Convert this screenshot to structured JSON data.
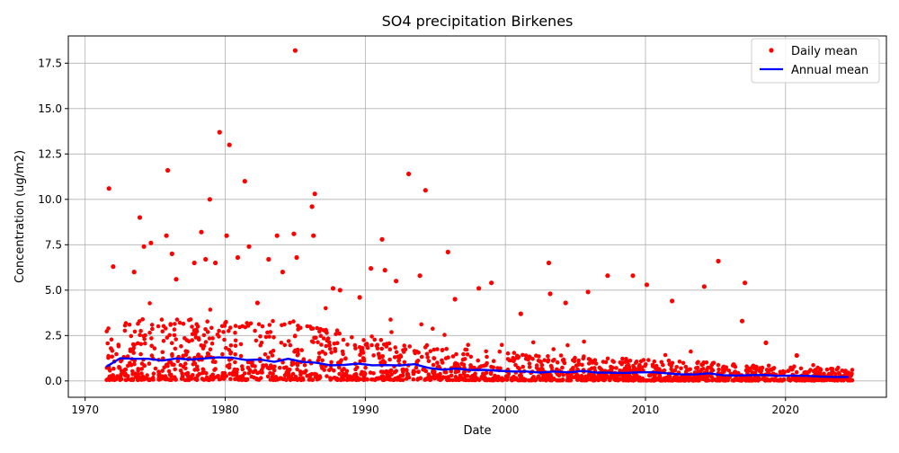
{
  "chart_data": {
    "type": "scatter",
    "title": "SO4 precipitation Birkenes",
    "xlabel": "Date",
    "ylabel": "Concentration (ug/m2)",
    "xlim": [
      1968.8,
      2027.2
    ],
    "ylim": [
      -0.9,
      19.0
    ],
    "grid": true,
    "legend_position": "top-right",
    "x_ticks": [
      {
        "value": 1970,
        "label": "1970"
      },
      {
        "value": 1980,
        "label": "1980"
      },
      {
        "value": 1990,
        "label": "1990"
      },
      {
        "value": 2000,
        "label": "2000"
      },
      {
        "value": 2010,
        "label": "2010"
      },
      {
        "value": 2020,
        "label": "2020"
      }
    ],
    "y_ticks": [
      {
        "value": 0.0,
        "label": "0.0"
      },
      {
        "value": 2.5,
        "label": "2.5"
      },
      {
        "value": 5.0,
        "label": "5.0"
      },
      {
        "value": 7.5,
        "label": "7.5"
      },
      {
        "value": 10.0,
        "label": "10.0"
      },
      {
        "value": 12.5,
        "label": "12.5"
      },
      {
        "value": 15.0,
        "label": "15.0"
      },
      {
        "value": 17.5,
        "label": "17.5"
      }
    ],
    "series": [
      {
        "name": "Daily mean",
        "kind": "points",
        "color": "#ff0000",
        "points": [
          [
            1971.7,
            10.6
          ],
          [
            1972.0,
            6.3
          ],
          [
            1973.5,
            6.0
          ],
          [
            1973.9,
            9.0
          ],
          [
            1974.2,
            7.4
          ],
          [
            1974.7,
            7.6
          ],
          [
            1975.9,
            11.6
          ],
          [
            1975.8,
            8.0
          ],
          [
            1976.2,
            7.0
          ],
          [
            1976.5,
            5.6
          ],
          [
            1977.8,
            6.5
          ],
          [
            1978.3,
            8.2
          ],
          [
            1978.6,
            6.7
          ],
          [
            1978.9,
            10.0
          ],
          [
            1979.3,
            6.5
          ],
          [
            1979.6,
            13.7
          ],
          [
            1980.1,
            8.0
          ],
          [
            1980.3,
            13.0
          ],
          [
            1980.9,
            6.8
          ],
          [
            1981.4,
            11.0
          ],
          [
            1981.7,
            7.4
          ],
          [
            1982.3,
            4.3
          ],
          [
            1983.1,
            6.7
          ],
          [
            1983.7,
            8.0
          ],
          [
            1984.1,
            6.0
          ],
          [
            1984.9,
            8.1
          ],
          [
            1985.0,
            18.2
          ],
          [
            1985.1,
            6.8
          ],
          [
            1986.2,
            9.6
          ],
          [
            1986.4,
            10.3
          ],
          [
            1986.3,
            8.0
          ],
          [
            1987.7,
            5.1
          ],
          [
            1988.2,
            5.0
          ],
          [
            1989.6,
            4.6
          ],
          [
            1990.4,
            6.2
          ],
          [
            1991.2,
            7.8
          ],
          [
            1991.4,
            6.1
          ],
          [
            1992.2,
            5.5
          ],
          [
            1993.1,
            11.4
          ],
          [
            1993.9,
            5.8
          ],
          [
            1994.3,
            10.5
          ],
          [
            1995.9,
            7.1
          ],
          [
            1996.4,
            4.5
          ],
          [
            1998.1,
            5.1
          ],
          [
            1999.0,
            5.4
          ],
          [
            2001.1,
            3.7
          ],
          [
            2003.1,
            6.5
          ],
          [
            2003.2,
            4.8
          ],
          [
            2004.3,
            4.3
          ],
          [
            2005.9,
            4.9
          ],
          [
            2007.3,
            5.8
          ],
          [
            2009.1,
            5.8
          ],
          [
            2010.1,
            5.3
          ],
          [
            2011.9,
            4.4
          ],
          [
            2014.2,
            5.2
          ],
          [
            2015.2,
            6.6
          ],
          [
            2016.9,
            3.3
          ],
          [
            2017.1,
            5.4
          ],
          [
            2018.6,
            2.1
          ],
          [
            2020.8,
            1.4
          ]
        ],
        "bulk_band": [
          [
            1971.5,
            0.05,
            3.2
          ],
          [
            1975,
            0.05,
            3.6
          ],
          [
            1980,
            0.05,
            3.5
          ],
          [
            1985,
            0.05,
            3.3
          ],
          [
            1990,
            0.05,
            2.6
          ],
          [
            1995,
            0.05,
            1.9
          ],
          [
            2000,
            0.03,
            1.6
          ],
          [
            2005,
            0.03,
            1.4
          ],
          [
            2010,
            0.02,
            1.2
          ],
          [
            2015,
            0.02,
            1.0
          ],
          [
            2020,
            0.02,
            0.8
          ],
          [
            2024.8,
            0.02,
            0.7
          ]
        ]
      },
      {
        "name": "Annual mean",
        "kind": "line",
        "color": "#0000ff",
        "x": [
          1971.5,
          1972.5,
          1973.5,
          1974.5,
          1975.5,
          1976.5,
          1977.5,
          1978.5,
          1979.5,
          1980.5,
          1981.5,
          1982.5,
          1983.5,
          1984.5,
          1985.5,
          1986.5,
          1987.5,
          1988.5,
          1989.5,
          1990.5,
          1991.5,
          1992.5,
          1993.5,
          1994.5,
          1995.5,
          1996.5,
          1997.5,
          1998.5,
          1999.5,
          2000.5,
          2001.5,
          2002.5,
          2003.5,
          2004.5,
          2005.5,
          2006.5,
          2007.5,
          2008.5,
          2009.5,
          2010.5,
          2011.5,
          2012.5,
          2013.5,
          2014.5,
          2015.5,
          2016.5,
          2017.5,
          2018.5,
          2019.5,
          2020.5,
          2021.5,
          2022.5,
          2023.5,
          2024.5
        ],
        "y": [
          0.78,
          1.25,
          1.22,
          1.22,
          1.12,
          1.24,
          1.18,
          1.24,
          1.3,
          1.28,
          1.15,
          1.18,
          1.05,
          1.22,
          1.05,
          1.0,
          0.86,
          0.88,
          0.95,
          0.86,
          0.87,
          0.85,
          0.92,
          0.72,
          0.62,
          0.68,
          0.6,
          0.61,
          0.56,
          0.52,
          0.52,
          0.46,
          0.52,
          0.47,
          0.55,
          0.46,
          0.45,
          0.44,
          0.47,
          0.48,
          0.42,
          0.36,
          0.35,
          0.42,
          0.32,
          0.3,
          0.32,
          0.33,
          0.28,
          0.3,
          0.28,
          0.24,
          0.22,
          0.22
        ]
      }
    ]
  }
}
